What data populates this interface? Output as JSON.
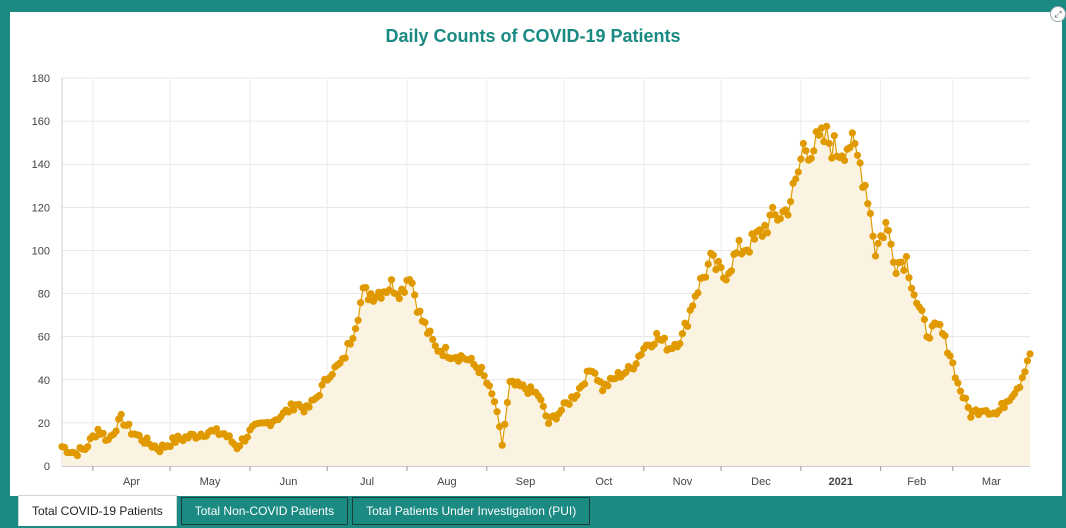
{
  "chart_data": {
    "type": "area",
    "title": "Daily Counts of COVID-19 Patients",
    "ylim": [
      0,
      180
    ],
    "yticks": [
      0,
      20,
      40,
      60,
      80,
      100,
      120,
      140,
      160,
      180
    ],
    "x_tick_labels": [
      {
        "label": "Apr",
        "bold": false
      },
      {
        "label": "May",
        "bold": false
      },
      {
        "label": "Jun",
        "bold": false
      },
      {
        "label": "Jul",
        "bold": false
      },
      {
        "label": "Aug",
        "bold": false
      },
      {
        "label": "Sep",
        "bold": false
      },
      {
        "label": "Oct",
        "bold": false
      },
      {
        "label": "Nov",
        "bold": false
      },
      {
        "label": "Dec",
        "bold": false
      },
      {
        "label": "2021",
        "bold": true
      },
      {
        "label": "Feb",
        "bold": false
      },
      {
        "label": "Mar",
        "bold": false
      }
    ],
    "x_start": "2020-03-20",
    "x_end": "2021-03-31",
    "grid": true,
    "line_color": "#e09a00",
    "fill_color": "#fbf3e2",
    "series": [
      {
        "name": "",
        "keyframes": [
          [
            "2020-03-20",
            9
          ],
          [
            "2020-03-25",
            6
          ],
          [
            "2020-03-29",
            8
          ],
          [
            "2020-04-03",
            17
          ],
          [
            "2020-04-07",
            12
          ],
          [
            "2020-04-12",
            22
          ],
          [
            "2020-04-16",
            16
          ],
          [
            "2020-04-22",
            11
          ],
          [
            "2020-04-27",
            8
          ],
          [
            "2020-05-03",
            12
          ],
          [
            "2020-05-10",
            14
          ],
          [
            "2020-05-16",
            16
          ],
          [
            "2020-05-22",
            15
          ],
          [
            "2020-05-27",
            9
          ],
          [
            "2020-06-02",
            17
          ],
          [
            "2020-06-08",
            20
          ],
          [
            "2020-06-14",
            24
          ],
          [
            "2020-06-19",
            29
          ],
          [
            "2020-06-23",
            26
          ],
          [
            "2020-06-27",
            32
          ],
          [
            "2020-07-02",
            43
          ],
          [
            "2020-07-07",
            48
          ],
          [
            "2020-07-11",
            62
          ],
          [
            "2020-07-15",
            80
          ],
          [
            "2020-07-20",
            80
          ],
          [
            "2020-07-26",
            84
          ],
          [
            "2020-07-30",
            81
          ],
          [
            "2020-08-02",
            90
          ],
          [
            "2020-08-06",
            70
          ],
          [
            "2020-08-12",
            55
          ],
          [
            "2020-08-18",
            52
          ],
          [
            "2020-08-24",
            50
          ],
          [
            "2020-08-30",
            44
          ],
          [
            "2020-09-04",
            30
          ],
          [
            "2020-09-07",
            10
          ],
          [
            "2020-09-10",
            38
          ],
          [
            "2020-09-16",
            36
          ],
          [
            "2020-09-21",
            33
          ],
          [
            "2020-09-25",
            20
          ],
          [
            "2020-09-30",
            26
          ],
          [
            "2020-10-06",
            34
          ],
          [
            "2020-10-12",
            46
          ],
          [
            "2020-10-16",
            36
          ],
          [
            "2020-10-22",
            42
          ],
          [
            "2020-10-27",
            45
          ],
          [
            "2020-11-01",
            55
          ],
          [
            "2020-11-06",
            60
          ],
          [
            "2020-11-11",
            55
          ],
          [
            "2020-11-16",
            60
          ],
          [
            "2020-11-21",
            80
          ],
          [
            "2020-11-27",
            95
          ],
          [
            "2020-12-02",
            88
          ],
          [
            "2020-12-08",
            100
          ],
          [
            "2020-12-14",
            104
          ],
          [
            "2020-12-20",
            114
          ],
          [
            "2020-12-26",
            118
          ],
          [
            "2020-12-30",
            130
          ],
          [
            "2021-01-02",
            148
          ],
          [
            "2021-01-06",
            148
          ],
          [
            "2021-01-11",
            152
          ],
          [
            "2021-01-15",
            146
          ],
          [
            "2021-01-20",
            150
          ],
          [
            "2021-01-24",
            140
          ],
          [
            "2021-01-27",
            126
          ],
          [
            "2021-01-30",
            100
          ],
          [
            "2021-02-03",
            112
          ],
          [
            "2021-02-07",
            94
          ],
          [
            "2021-02-11",
            96
          ],
          [
            "2021-02-15",
            76
          ],
          [
            "2021-02-19",
            62
          ],
          [
            "2021-02-24",
            64
          ],
          [
            "2021-02-28",
            52
          ],
          [
            "2021-03-03",
            38
          ],
          [
            "2021-03-08",
            24
          ],
          [
            "2021-03-13",
            27
          ],
          [
            "2021-03-18",
            24
          ],
          [
            "2021-03-23",
            32
          ],
          [
            "2021-03-27",
            38
          ],
          [
            "2021-03-31",
            53
          ]
        ]
      }
    ]
  },
  "tabs": {
    "items": [
      {
        "label": "Total COVID-19 Patients",
        "active": true
      },
      {
        "label": "Total Non-COVID Patients",
        "active": false
      },
      {
        "label": "Total Patients Under Investigation (PUI)",
        "active": false
      }
    ]
  }
}
